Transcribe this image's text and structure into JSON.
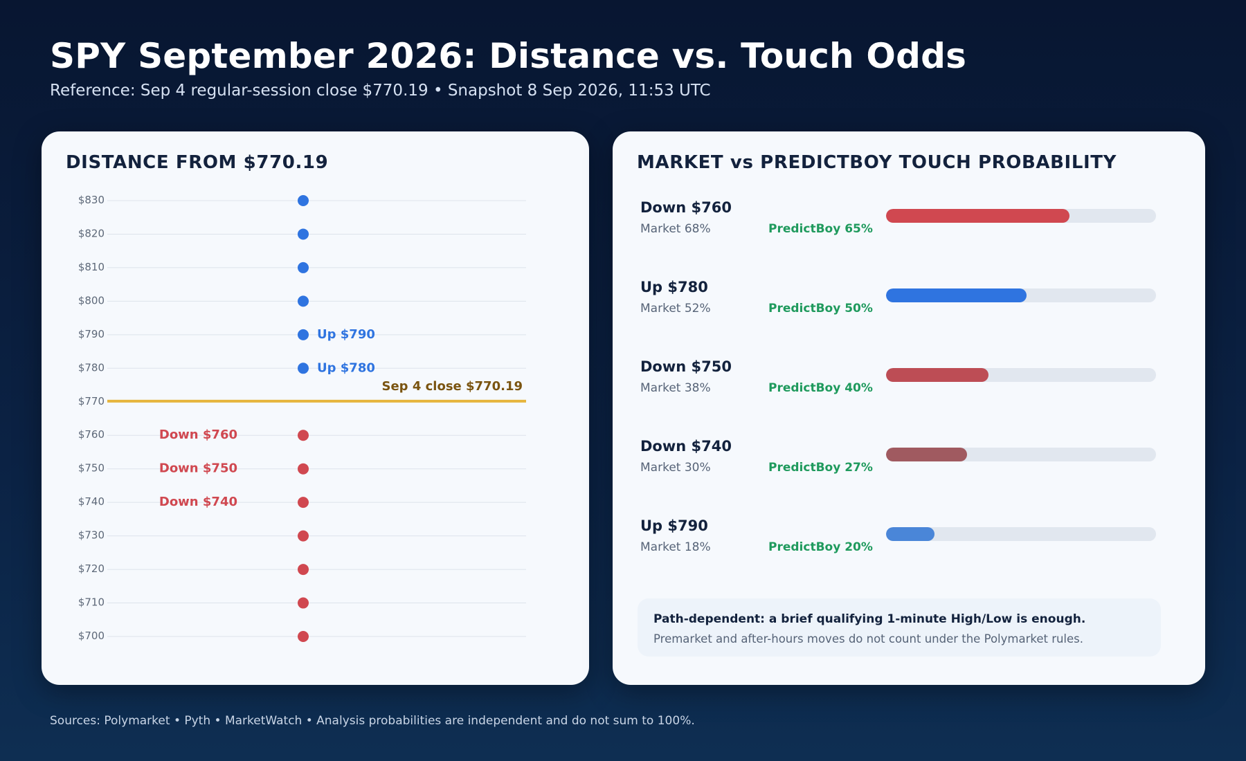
{
  "header": {
    "title": "SPY September 2026: Distance vs. Touch Odds",
    "subtitle": "Reference: Sep 4 regular-session close $770.19 • Snapshot 8 Sep 2026, 11:53 UTC"
  },
  "colors": {
    "up": "#2f74e0",
    "down": "#d04850",
    "reference": "#e6b53d",
    "reference_text": "#7a5410",
    "predictboy": "#1f9a5d"
  },
  "chart_data": [
    {
      "type": "scatter",
      "title": "DISTANCE FROM $770.19",
      "ylim": [
        700,
        830
      ],
      "y_ticks": [
        830,
        820,
        810,
        800,
        790,
        780,
        770,
        760,
        750,
        740,
        730,
        720,
        710,
        700
      ],
      "tick_labels": [
        "$830",
        "$820",
        "$810",
        "$800",
        "$790",
        "$780",
        "$770",
        "$760",
        "$750",
        "$740",
        "$730",
        "$720",
        "$710",
        "$700"
      ],
      "reference": {
        "value": 770.19,
        "label": "Sep 4 close $770.19"
      },
      "grid": true,
      "points": [
        {
          "y": 830,
          "side": "up",
          "label": ""
        },
        {
          "y": 820,
          "side": "up",
          "label": ""
        },
        {
          "y": 810,
          "side": "up",
          "label": ""
        },
        {
          "y": 800,
          "side": "up",
          "label": ""
        },
        {
          "y": 790,
          "side": "up",
          "label": "Up $790"
        },
        {
          "y": 780,
          "side": "up",
          "label": "Up $780"
        },
        {
          "y": 760,
          "side": "down",
          "label": "Down $760"
        },
        {
          "y": 750,
          "side": "down",
          "label": "Down $750"
        },
        {
          "y": 740,
          "side": "down",
          "label": "Down $740"
        },
        {
          "y": 730,
          "side": "down",
          "label": ""
        },
        {
          "y": 720,
          "side": "down",
          "label": ""
        },
        {
          "y": 710,
          "side": "down",
          "label": ""
        },
        {
          "y": 700,
          "side": "down",
          "label": ""
        }
      ]
    },
    {
      "type": "bar",
      "title": "MARKET vs PREDICTBOY TOUCH PROBABILITY",
      "xlim": [
        0,
        100
      ],
      "series": [
        {
          "name": "Market",
          "values": [
            68,
            52,
            38,
            30,
            18
          ]
        },
        {
          "name": "PredictBoy",
          "values": [
            65,
            50,
            40,
            27,
            20
          ]
        }
      ],
      "rows": [
        {
          "label": "Down $760",
          "market": "Market 68%",
          "predictboy": "PredictBoy 65%",
          "value": 68,
          "color": "#d04850"
        },
        {
          "label": "Up $780",
          "market": "Market 52%",
          "predictboy": "PredictBoy 50%",
          "value": 52,
          "color": "#2f74e0"
        },
        {
          "label": "Down $750",
          "market": "Market 38%",
          "predictboy": "PredictBoy 40%",
          "value": 38,
          "color": "#bd4d55"
        },
        {
          "label": "Down $740",
          "market": "Market 30%",
          "predictboy": "PredictBoy 27%",
          "value": 30,
          "color": "#a05a60"
        },
        {
          "label": "Up $790",
          "market": "Market 18%",
          "predictboy": "PredictBoy 20%",
          "value": 18,
          "color": "#4a86d8"
        }
      ]
    }
  ],
  "note": {
    "bold": "Path-dependent: a brief qualifying 1-minute High/Low is enough.",
    "text": "Premarket and after-hours moves do not count under the Polymarket rules."
  },
  "footer": "Sources: Polymarket • Pyth • MarketWatch • Analysis probabilities are independent and do not sum to 100%."
}
